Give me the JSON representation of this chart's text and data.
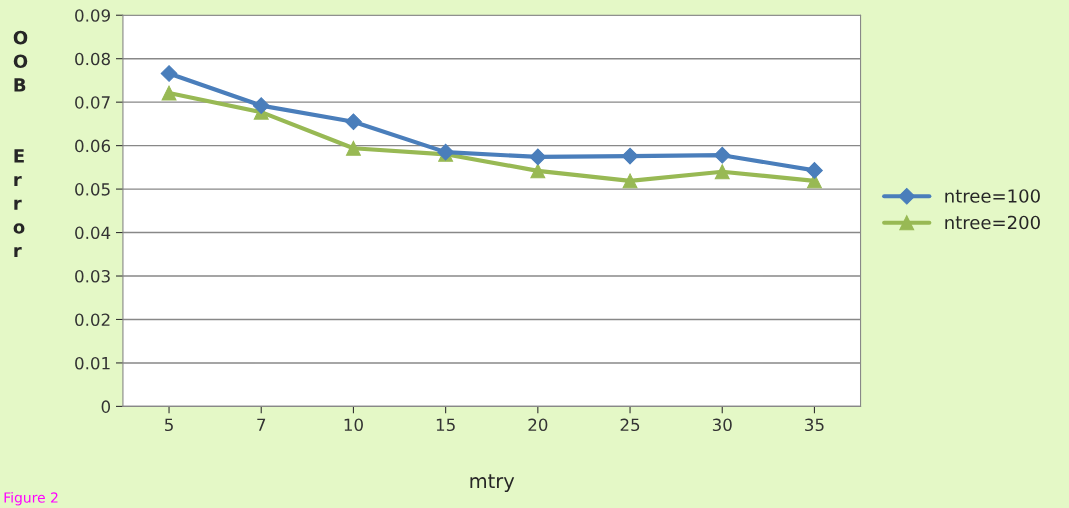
{
  "chart_data": {
    "type": "line",
    "xlabel": "mtry",
    "ylabel": "OOB Error",
    "categories": [
      "5",
      "7",
      "10",
      "15",
      "20",
      "25",
      "30",
      "35"
    ],
    "series": [
      {
        "name": "ntree=100",
        "color": "#4a7ebb",
        "marker": "diamond",
        "values": [
          0.0766,
          0.0692,
          0.0655,
          0.0585,
          0.0574,
          0.0576,
          0.0578,
          0.0543
        ]
      },
      {
        "name": "ntree=200",
        "color": "#98b954",
        "marker": "triangle",
        "values": [
          0.0721,
          0.0677,
          0.0594,
          0.058,
          0.0542,
          0.0519,
          0.054,
          0.0519
        ]
      }
    ],
    "ylim": [
      0,
      0.09
    ],
    "yticks": [
      0,
      0.01,
      0.02,
      0.03,
      0.04,
      0.05,
      0.06,
      0.07,
      0.08,
      0.09
    ],
    "grid": "y",
    "legend": "right",
    "line_style": "solid",
    "annotations": [
      "Figure 2"
    ]
  }
}
